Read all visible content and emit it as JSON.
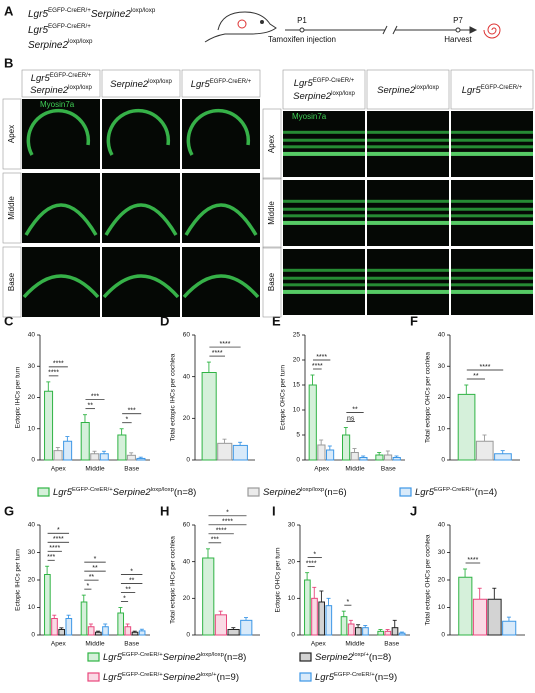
{
  "figure": {
    "panel_letters": [
      "A",
      "B",
      "C",
      "D",
      "E",
      "F",
      "G",
      "H",
      "I",
      "J"
    ],
    "panel_a": {
      "genotypes": [
        [
          "Lgr5",
          "EGFP-CreER/+",
          "Serpine2",
          "loxp/loxp"
        ],
        [
          "Lgr5",
          "EGFP-CreER/+"
        ],
        [
          "Serpine2",
          "loxp/loxp"
        ]
      ],
      "timeline": {
        "start": "P1",
        "start_event": "Tamoxifen injection",
        "end": "P7",
        "end_event": "Harvest"
      }
    },
    "panel_b": {
      "columns": [
        [
          "Lgr5",
          "EGFP-CreER/+",
          "Serpine2",
          "loxp/loxp"
        ],
        [
          "Serpine2",
          "loxp/loxp"
        ],
        [
          "Lgr5",
          "EGFP-CreER/+"
        ]
      ],
      "rows": [
        "Apex",
        "Middle",
        "Base"
      ],
      "stain": "Myosin7a"
    }
  },
  "chart_data": [
    {
      "type": "bar",
      "ylabel": "Ectopic IHCs per turn",
      "categories": [
        "Apex",
        "Middle",
        "Base"
      ],
      "ylim": [
        0,
        40
      ],
      "yticks": [
        0,
        10,
        20,
        30,
        40
      ],
      "series": [
        {
          "name": [
            "Lgr5",
            "EGFP-CreER/+",
            "Serpine2",
            "loxp/loxp",
            "(n=8)"
          ],
          "color": "#2fb344",
          "values": [
            22,
            12,
            8
          ],
          "errors": [
            3,
            2.5,
            2
          ]
        },
        {
          "name": [
            "Serpine2",
            "loxp/loxp",
            "(n=6)"
          ],
          "color": "#9a9a9a",
          "values": [
            3,
            2,
            1.5
          ],
          "errors": [
            1,
            0.8,
            0.8
          ]
        },
        {
          "name": [
            "Lgr5",
            "EGFP-CreER/+",
            "(n=4)"
          ],
          "color": "#3d97e6",
          "values": [
            6,
            2,
            0.5
          ],
          "errors": [
            1.5,
            0.8,
            0.4
          ]
        }
      ],
      "significance": [
        [
          "****",
          "****"
        ],
        [
          "**",
          "***"
        ],
        [
          "*",
          "***"
        ]
      ]
    },
    {
      "type": "bar",
      "ylabel": "Total ectopic IHCs per cochlea",
      "ylim": [
        0,
        60
      ],
      "yticks": [
        0,
        20,
        40,
        60
      ],
      "series": [
        {
          "color": "#2fb344",
          "values": [
            42
          ],
          "errors": [
            5
          ]
        },
        {
          "color": "#9a9a9a",
          "values": [
            8
          ],
          "errors": [
            2
          ]
        },
        {
          "color": "#3d97e6",
          "values": [
            7
          ],
          "errors": [
            1.5
          ]
        }
      ],
      "significance": [
        [
          "****",
          "****"
        ]
      ]
    },
    {
      "type": "bar",
      "ylabel": "Ectopic OHCs per turn",
      "categories": [
        "Apex",
        "Middle",
        "Base"
      ],
      "ylim": [
        0,
        25
      ],
      "yticks": [
        0,
        5,
        10,
        15,
        20,
        25
      ],
      "series": [
        {
          "color": "#2fb344",
          "values": [
            15,
            5,
            1
          ],
          "errors": [
            2,
            1.5,
            0.5
          ]
        },
        {
          "color": "#9a9a9a",
          "values": [
            3,
            1.5,
            1
          ],
          "errors": [
            1,
            0.8,
            0.8
          ]
        },
        {
          "color": "#3d97e6",
          "values": [
            2,
            0.5,
            0.5
          ],
          "errors": [
            0.8,
            0.3,
            0.3
          ]
        }
      ],
      "significance": [
        [
          "****",
          "****"
        ],
        [
          "ns",
          "**"
        ],
        []
      ]
    },
    {
      "type": "bar",
      "ylabel": "Total ectopic OHCs per cochlea",
      "ylim": [
        0,
        40
      ],
      "yticks": [
        0,
        10,
        20,
        30,
        40
      ],
      "series": [
        {
          "color": "#2fb344",
          "values": [
            21
          ],
          "errors": [
            3
          ]
        },
        {
          "color": "#9a9a9a",
          "values": [
            6
          ],
          "errors": [
            2
          ]
        },
        {
          "color": "#3d97e6",
          "values": [
            2
          ],
          "errors": [
            1
          ]
        }
      ],
      "significance": [
        [
          "**",
          "****"
        ]
      ]
    },
    {
      "type": "bar",
      "ylabel": "Ectopic IHCs per turn",
      "categories": [
        "Apex",
        "Middle",
        "Base"
      ],
      "ylim": [
        0,
        40
      ],
      "yticks": [
        0,
        10,
        20,
        30,
        40
      ],
      "series": [
        {
          "name": [
            "Lgr5",
            "EGFP-CreER/+",
            "Serpine2",
            "loxp/loxp",
            "(n=8)"
          ],
          "color": "#2fb344",
          "values": [
            22,
            12,
            8
          ],
          "errors": [
            3,
            2.5,
            2
          ]
        },
        {
          "name": [
            "Lgr5",
            "EGFP-CreER/+",
            "Serpine2",
            "loxp/+",
            "(n=9)"
          ],
          "color": "#e8467c",
          "values": [
            6,
            3,
            3
          ],
          "errors": [
            1.2,
            1,
            1
          ]
        },
        {
          "name": [
            "Serpine2",
            "loxp/+",
            "(n=8)"
          ],
          "color": "#222222",
          "values": [
            2,
            1,
            1
          ],
          "errors": [
            0.6,
            0.4,
            0.4
          ]
        },
        {
          "name": [
            "Lgr5",
            "EGFP-CreER/+",
            "(n=9)"
          ],
          "color": "#3d97e6",
          "values": [
            6,
            3,
            1.5
          ],
          "errors": [
            1.2,
            1,
            0.6
          ]
        }
      ],
      "significance": [
        [
          "***",
          "****",
          "****",
          "*"
        ],
        [
          "*",
          "**",
          "**",
          "*"
        ],
        [
          "*",
          "**",
          "**",
          "*"
        ]
      ]
    },
    {
      "type": "bar",
      "ylabel": "Total ectopic IHCs per cochlea",
      "ylim": [
        0,
        60
      ],
      "yticks": [
        0,
        20,
        40,
        60
      ],
      "series": [
        {
          "color": "#2fb344",
          "values": [
            42
          ],
          "errors": [
            5
          ]
        },
        {
          "color": "#e8467c",
          "values": [
            11
          ],
          "errors": [
            2
          ]
        },
        {
          "color": "#222222",
          "values": [
            3
          ],
          "errors": [
            1
          ]
        },
        {
          "color": "#3d97e6",
          "values": [
            8
          ],
          "errors": [
            1.5
          ]
        }
      ],
      "significance": [
        [
          "***",
          "****",
          "****",
          "*"
        ]
      ]
    },
    {
      "type": "bar",
      "ylabel": "Ectopic OHCs per turn",
      "categories": [
        "Apex",
        "Middle",
        "Base"
      ],
      "ylim": [
        0,
        30
      ],
      "yticks": [
        0,
        10,
        20,
        30
      ],
      "series": [
        {
          "color": "#2fb344",
          "values": [
            15,
            5,
            1
          ],
          "errors": [
            2,
            1.5,
            0.5
          ]
        },
        {
          "color": "#e8467c",
          "values": [
            10,
            3,
            1
          ],
          "errors": [
            3,
            1,
            0.5
          ]
        },
        {
          "color": "#222222",
          "values": [
            9,
            2,
            2
          ],
          "errors": [
            3,
            0.8,
            2
          ]
        },
        {
          "color": "#3d97e6",
          "values": [
            8,
            2,
            0.5
          ],
          "errors": [
            2,
            0.6,
            0.3
          ]
        }
      ],
      "significance": [
        [
          "****",
          "*"
        ],
        [
          "*"
        ],
        []
      ]
    },
    {
      "type": "bar",
      "ylabel": "Total ectopic OHCs per cochlea",
      "ylim": [
        0,
        40
      ],
      "yticks": [
        0,
        10,
        20,
        30,
        40
      ],
      "series": [
        {
          "color": "#2fb344",
          "values": [
            21
          ],
          "errors": [
            3
          ]
        },
        {
          "color": "#e8467c",
          "values": [
            13
          ],
          "errors": [
            4
          ]
        },
        {
          "color": "#222222",
          "values": [
            13
          ],
          "errors": [
            4
          ]
        },
        {
          "color": "#3d97e6",
          "values": [
            5
          ],
          "errors": [
            1.5
          ]
        }
      ],
      "significance": [
        [
          "****"
        ]
      ]
    }
  ]
}
